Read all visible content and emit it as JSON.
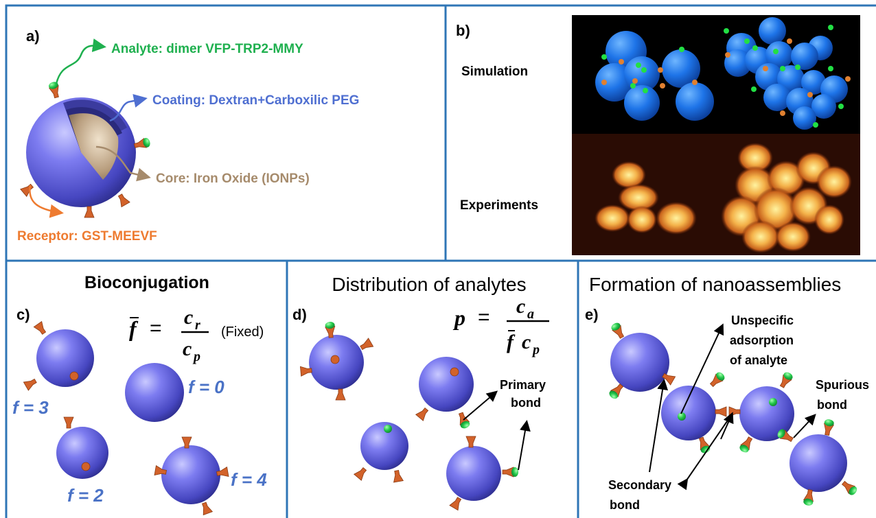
{
  "panel_a": {
    "label": "a)",
    "analyte": "Analyte: dimer VFP-TRP2-MMY",
    "coating": "Coating: Dextran+Carboxilic PEG",
    "core": "Core: Iron Oxide (IONPs)",
    "receptor": "Receptor: GST-MEEVF",
    "colors": {
      "analyte": "#1fb04f",
      "coating": "#4f6fd1",
      "core": "#a68b6c",
      "receptor": "#ee7b30"
    }
  },
  "panel_b": {
    "label": "b)",
    "simulation": "Simulation",
    "experiments": "Experiments"
  },
  "panel_c": {
    "title": "Bioconjugation",
    "label": "c)",
    "f_sym": "f",
    "eq": "=",
    "num": "c",
    "num_sub": "r",
    "den": "c",
    "den_sub": "p",
    "fixed": "(Fixed)",
    "f3": "f = 3",
    "f0": "f = 0",
    "f2": "f = 2",
    "f4": "f = 4"
  },
  "panel_d": {
    "title": "Distribution of analytes",
    "label": "d)",
    "p_sym": "p",
    "eq": "=",
    "num": "c",
    "num_sub": "a",
    "den_f": "f",
    "den_c": "c",
    "den_sub": "p",
    "primary": "Primary",
    "bond": "bond"
  },
  "panel_e": {
    "title": "Formation of nanoassemblies",
    "label": "e)",
    "unspecific1": "Unspecific",
    "unspecific2": "adsorption",
    "unspecific3": "of analyte",
    "spurious1": "Spurious",
    "spurious2": "bond",
    "secondary1": "Secondary",
    "secondary2": "bond"
  },
  "colors": {
    "border": "#2e75b6",
    "sphere": "#5a5ad6",
    "particle_sim": "#1b6fe0",
    "analyte": "#22c84a",
    "receptor": "#d2622a",
    "f_label": "#4a72c6"
  }
}
